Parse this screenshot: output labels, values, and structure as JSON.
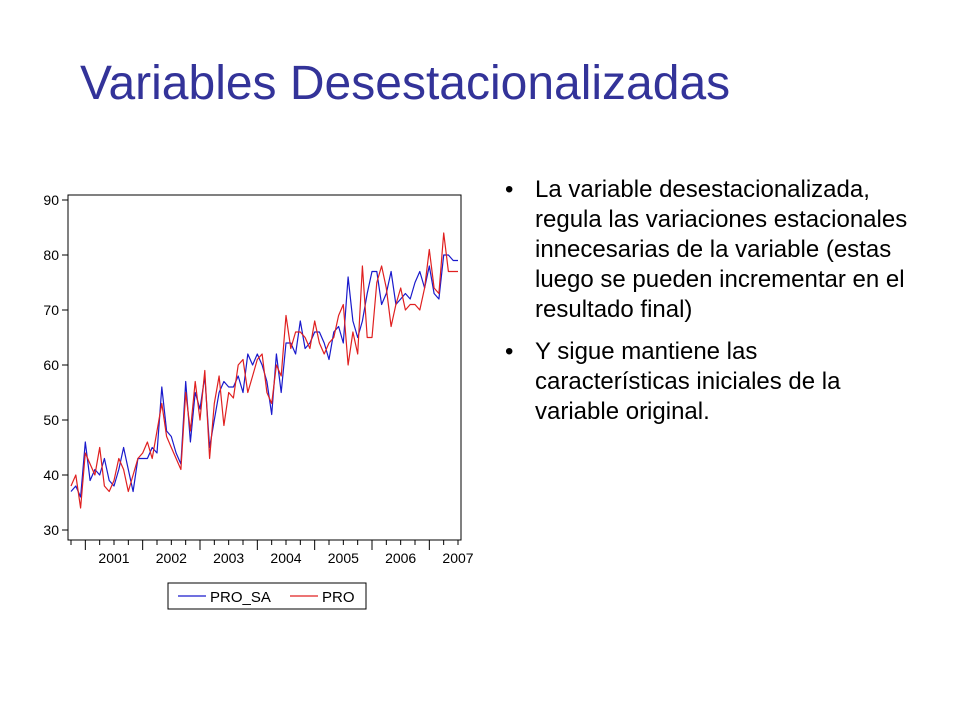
{
  "slide": {
    "title": "Variables Desestacionalizadas",
    "bullets": [
      "La variable desestacionalizada, regula las variaciones estacionales innecesarias de la variable (estas luego se pueden incrementar en el resultado final)",
      "Y sigue mantiene las características iniciales de la variable original."
    ],
    "bullet_symbol": "•",
    "colors": {
      "title": "#333399",
      "series_sa": "#1a1acc",
      "series_raw": "#e02020"
    }
  },
  "chart_data": {
    "type": "line",
    "title": "",
    "xlabel": "",
    "ylabel": "",
    "ylim": [
      30,
      90
    ],
    "yticks": [
      "90",
      "80",
      "70",
      "60",
      "50",
      "40",
      "30"
    ],
    "xlim": [
      2000.75,
      2007.5
    ],
    "xticks": [
      "2001",
      "2002",
      "2003",
      "2004",
      "2005",
      "2006",
      "2007"
    ],
    "grid": false,
    "legend": "bottom",
    "x": [
      2000.75,
      2000.833,
      2000.917,
      2001.0,
      2001.083,
      2001.167,
      2001.25,
      2001.333,
      2001.417,
      2001.5,
      2001.583,
      2001.667,
      2001.75,
      2001.833,
      2001.917,
      2002.0,
      2002.083,
      2002.167,
      2002.25,
      2002.333,
      2002.417,
      2002.5,
      2002.583,
      2002.667,
      2002.75,
      2002.833,
      2002.917,
      2003.0,
      2003.083,
      2003.167,
      2003.25,
      2003.333,
      2003.417,
      2003.5,
      2003.583,
      2003.667,
      2003.75,
      2003.833,
      2003.917,
      2004.0,
      2004.083,
      2004.167,
      2004.25,
      2004.333,
      2004.417,
      2004.5,
      2004.583,
      2004.667,
      2004.75,
      2004.833,
      2004.917,
      2005.0,
      2005.083,
      2005.167,
      2005.25,
      2005.333,
      2005.417,
      2005.5,
      2005.583,
      2005.667,
      2005.75,
      2005.833,
      2005.917,
      2006.0,
      2006.083,
      2006.167,
      2006.25,
      2006.333,
      2006.417,
      2006.5,
      2006.583,
      2006.667,
      2006.75,
      2006.833,
      2006.917,
      2007.0,
      2007.083,
      2007.167,
      2007.25,
      2007.333,
      2007.417,
      2007.5
    ],
    "series": [
      {
        "name": "PRO_SA",
        "color": "#1a1acc",
        "values": [
          37,
          38,
          36,
          46,
          39,
          41,
          40,
          43,
          39,
          38,
          41,
          45,
          41,
          37,
          43,
          43,
          43,
          45,
          44,
          56,
          48,
          47,
          44,
          42,
          57,
          46,
          55,
          52,
          58,
          45,
          50,
          55,
          57,
          56,
          56,
          58,
          55,
          62,
          60,
          62,
          60,
          57,
          51,
          62,
          55,
          64,
          64,
          62,
          68,
          63,
          64,
          66,
          66,
          64,
          61,
          66,
          67,
          64,
          76,
          68,
          65,
          68,
          73,
          77,
          77,
          71,
          73,
          77,
          71,
          72,
          73,
          72,
          75,
          77,
          74,
          78,
          73,
          72,
          80,
          80,
          79,
          79
        ],
        "legend_label": "PRO_SA"
      },
      {
        "name": "PRO",
        "color": "#e02020",
        "values": [
          38,
          40,
          34,
          44,
          42,
          40,
          45,
          38,
          37,
          39,
          43,
          41,
          37,
          40,
          43,
          44,
          46,
          43,
          48,
          53,
          47,
          45,
          43,
          41,
          55,
          48,
          57,
          50,
          59,
          43,
          53,
          58,
          49,
          55,
          54,
          60,
          61,
          55,
          58,
          61,
          62,
          55,
          53,
          60,
          58,
          69,
          63,
          66,
          66,
          65,
          63,
          68,
          64,
          62,
          64,
          65,
          69,
          71,
          60,
          66,
          62,
          78,
          65,
          65,
          75,
          78,
          74,
          67,
          71,
          74,
          70,
          71,
          71,
          70,
          74,
          81,
          74,
          73,
          84,
          77,
          77,
          77
        ],
        "legend_label": "PRO"
      }
    ]
  }
}
